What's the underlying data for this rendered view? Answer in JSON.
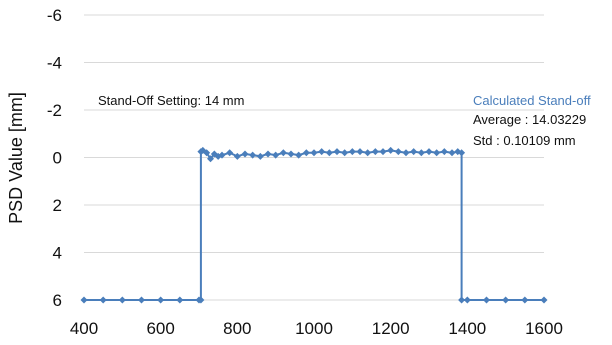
{
  "chart_data": {
    "type": "line",
    "ylabel": "PSD Value [mm]",
    "xlabel": "",
    "xlim": [
      400,
      1600
    ],
    "ylim": [
      -6,
      6
    ],
    "y_inverted": true,
    "grid": "horizontal",
    "x_ticks": [
      "400",
      "600",
      "800",
      "1000",
      "1200",
      "1400",
      "1600"
    ],
    "y_ticks": [
      "-6",
      "-4",
      "-2",
      "0",
      "2",
      "4",
      "6"
    ],
    "series": [
      {
        "name": "Calculated Stand-off",
        "color": "#4a7ebb",
        "marker": "diamond",
        "x": [
          400,
          450,
          500,
          550,
          600,
          650,
          700,
          705,
          705,
          710,
          720,
          730,
          740,
          750,
          760,
          780,
          800,
          820,
          840,
          860,
          880,
          900,
          920,
          940,
          960,
          980,
          1000,
          1020,
          1040,
          1060,
          1080,
          1100,
          1120,
          1140,
          1160,
          1180,
          1200,
          1220,
          1240,
          1260,
          1280,
          1300,
          1320,
          1340,
          1360,
          1375,
          1385,
          1385,
          1400,
          1450,
          1500,
          1550,
          1600
        ],
        "y": [
          6,
          6,
          6,
          6,
          6,
          6,
          6,
          6,
          -0.25,
          -0.3,
          -0.2,
          0.05,
          -0.15,
          -0.05,
          -0.1,
          -0.2,
          -0.05,
          -0.15,
          -0.1,
          -0.05,
          -0.15,
          -0.1,
          -0.2,
          -0.15,
          -0.1,
          -0.2,
          -0.2,
          -0.25,
          -0.2,
          -0.25,
          -0.2,
          -0.25,
          -0.25,
          -0.2,
          -0.25,
          -0.25,
          -0.3,
          -0.25,
          -0.2,
          -0.25,
          -0.2,
          -0.25,
          -0.2,
          -0.25,
          -0.2,
          -0.25,
          -0.2,
          6,
          6,
          6,
          6,
          6,
          6
        ]
      }
    ],
    "annotations": {
      "setting": "Stand-Off  Setting: 14 mm",
      "legend_title": "Calculated Stand-off",
      "average": "Average : 14.03229",
      "std": "Std : 0.10109 mm"
    }
  }
}
